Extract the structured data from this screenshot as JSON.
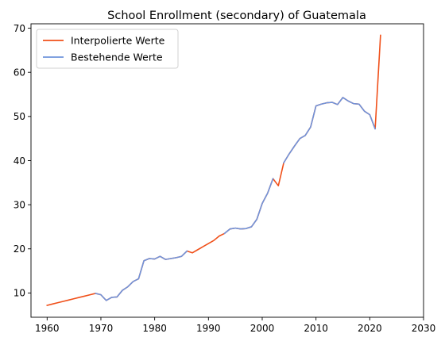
{
  "chart_data": {
    "type": "line",
    "title": "School Enrollment (secondary) of Guatemala",
    "xlabel": "",
    "ylabel": "",
    "xlim": [
      1957,
      2030
    ],
    "ylim": [
      4.5,
      71
    ],
    "xticks": [
      1960,
      1970,
      1980,
      1990,
      2000,
      2010,
      2020,
      2030
    ],
    "yticks": [
      10,
      20,
      30,
      40,
      50,
      60,
      70
    ],
    "grid": false,
    "legend_position": "top-left",
    "series": [
      {
        "name": "Interpolierte Werte",
        "color": "#f0501a",
        "x": [
          1960,
          1961,
          1962,
          1963,
          1964,
          1965,
          1966,
          1967,
          1968,
          1969,
          1970,
          1971,
          1972,
          1973,
          1974,
          1975,
          1976,
          1977,
          1978,
          1979,
          1980,
          1981,
          1982,
          1983,
          1984,
          1985,
          1986,
          1987,
          1988,
          1989,
          1990,
          1991,
          1992,
          1993,
          1994,
          1995,
          1996,
          1997,
          1998,
          1999,
          2000,
          2001,
          2002,
          2003,
          2004,
          2005,
          2006,
          2007,
          2008,
          2009,
          2010,
          2011,
          2012,
          2013,
          2014,
          2015,
          2016,
          2017,
          2018,
          2019,
          2020,
          2021,
          2022
        ],
        "y": [
          7.2,
          7.5,
          7.8,
          8.1,
          8.4,
          8.7,
          9.0,
          9.3,
          9.6,
          9.9,
          9.6,
          8.3,
          9.0,
          9.1,
          10.6,
          11.4,
          12.6,
          13.2,
          17.3,
          17.8,
          17.7,
          18.3,
          17.6,
          17.8,
          18.0,
          18.3,
          19.5,
          19.1,
          19.8,
          20.5,
          21.2,
          21.9,
          22.9,
          23.5,
          24.5,
          24.7,
          24.5,
          24.6,
          25.0,
          26.7,
          30.3,
          32.6,
          35.9,
          34.3,
          39.5,
          41.5,
          43.3,
          45.0,
          45.7,
          47.6,
          52.4,
          52.8,
          53.1,
          53.2,
          52.7,
          54.3,
          53.5,
          52.9,
          52.8,
          51.2,
          50.4,
          47.2,
          68.4
        ]
      },
      {
        "name": "Bestehende Werte",
        "color": "#6f94dc",
        "x": [
          1969,
          1970,
          1971,
          1972,
          1973,
          1974,
          1975,
          1976,
          1977,
          1978,
          1979,
          1980,
          1981,
          1982,
          1983,
          1984,
          1985,
          1986,
          null,
          1993,
          1994,
          1995,
          1996,
          1997,
          1998,
          1999,
          2000,
          2001,
          2002,
          null,
          2004,
          2005,
          2006,
          2007,
          2008,
          2009,
          2010,
          2011,
          2012,
          2013,
          2014,
          2015,
          2016,
          2017,
          2018,
          2019,
          2020,
          2021
        ],
        "y": [
          9.9,
          9.6,
          8.3,
          9.0,
          9.1,
          10.6,
          11.4,
          12.6,
          13.2,
          17.3,
          17.8,
          17.7,
          18.3,
          17.6,
          17.8,
          18.0,
          18.3,
          19.5,
          null,
          23.5,
          24.5,
          24.7,
          24.5,
          24.6,
          25.0,
          26.7,
          30.3,
          32.6,
          35.9,
          null,
          39.5,
          41.5,
          43.3,
          45.0,
          45.7,
          47.6,
          52.4,
          52.8,
          53.1,
          53.2,
          52.7,
          54.3,
          53.5,
          52.9,
          52.8,
          51.2,
          50.4,
          47.2
        ]
      }
    ]
  }
}
